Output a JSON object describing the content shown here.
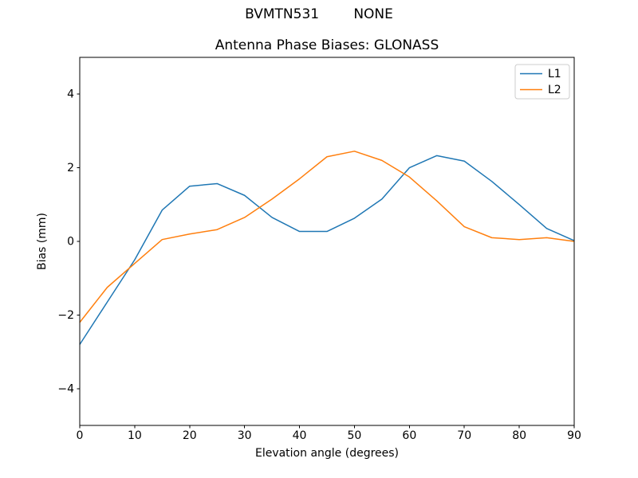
{
  "figure": {
    "suptitle": "BVMTN531        NONE",
    "background_color": "#ffffff"
  },
  "chart_data": {
    "type": "line",
    "title": "Antenna Phase Biases: GLONASS",
    "xlabel": "Elevation angle (degrees)",
    "ylabel": "Bias (mm)",
    "xlim": [
      0,
      90
    ],
    "ylim": [
      -5,
      5
    ],
    "xticks": [
      0,
      10,
      20,
      30,
      40,
      50,
      60,
      70,
      80,
      90
    ],
    "yticks": [
      -4,
      -2,
      0,
      2,
      4
    ],
    "grid": false,
    "legend_position": "upper right",
    "axis_color": "#000000",
    "x": [
      0,
      5,
      10,
      15,
      20,
      25,
      30,
      35,
      40,
      45,
      50,
      55,
      60,
      65,
      70,
      75,
      80,
      85,
      90
    ],
    "series": [
      {
        "name": "L1",
        "color": "#1f77b4",
        "values": [
          -2.8,
          -1.65,
          -0.5,
          0.85,
          1.5,
          1.57,
          1.25,
          0.65,
          0.27,
          0.27,
          0.63,
          1.15,
          2.0,
          2.33,
          2.18,
          1.63,
          1.0,
          0.35,
          0.02
        ]
      },
      {
        "name": "L2",
        "color": "#ff7f0e",
        "values": [
          -2.2,
          -1.25,
          -0.6,
          0.05,
          0.2,
          0.32,
          0.65,
          1.15,
          1.7,
          2.3,
          2.45,
          2.2,
          1.75,
          1.1,
          0.4,
          0.1,
          0.05,
          0.1,
          0.0
        ]
      }
    ]
  }
}
